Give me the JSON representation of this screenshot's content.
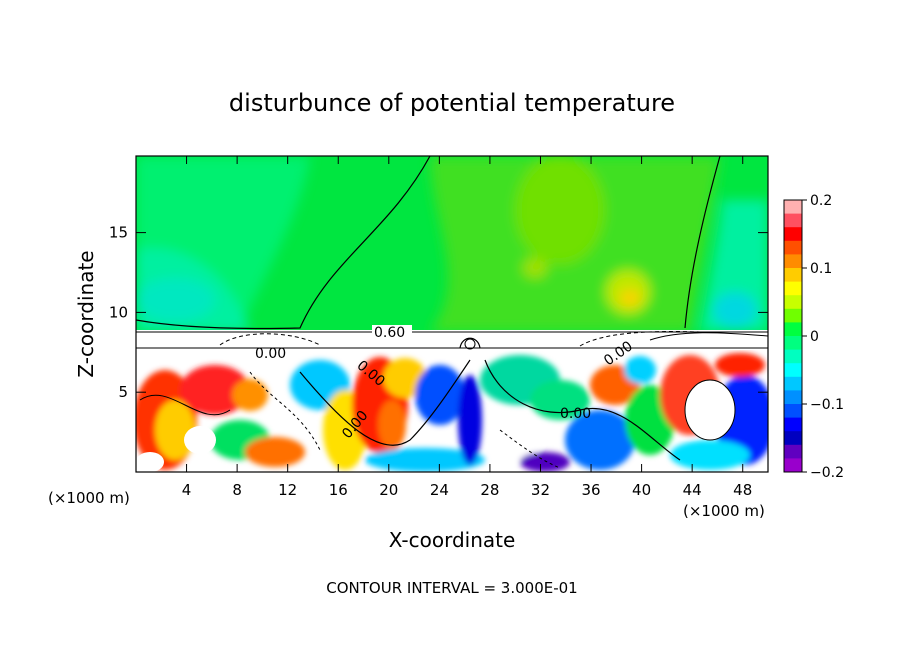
{
  "chart_data": {
    "type": "heatmap",
    "title": "disturbunce of potential temperature",
    "xlabel": "X-coordinate",
    "ylabel": "Z-coordinate",
    "x_unit_label": "(×1000 m)",
    "x_unit_label_right": "(×1000 m)",
    "x_ticks": [
      4,
      8,
      12,
      16,
      20,
      24,
      28,
      32,
      36,
      40,
      44,
      48
    ],
    "y_ticks": [
      5,
      10,
      15
    ],
    "xlim": [
      0,
      50
    ],
    "ylim": [
      0,
      19.8
    ],
    "contour_interval_text": "CONTOUR INTERVAL = 3.000E-01",
    "contour_labels": [
      "0.60",
      "0.00",
      "0.00",
      "0.00",
      "0.00",
      "0.00",
      "0.00"
    ],
    "colorbar": {
      "min": -0.2,
      "max": 0.2,
      "ticks": [
        0.2,
        0.1,
        0,
        -0.1,
        -0.2
      ],
      "tick_labels": [
        "0.2",
        "0.1",
        "0",
        "−0.1",
        "−0.2"
      ],
      "colors": [
        "#ffb0b0",
        "#ff5060",
        "#ff0000",
        "#ff5000",
        "#ff8c00",
        "#ffcc00",
        "#ffff00",
        "#c8ff00",
        "#70ff00",
        "#00ff40",
        "#00ff80",
        "#00ffc0",
        "#00ffff",
        "#00c8ff",
        "#0090ff",
        "#0050ff",
        "#0000ff",
        "#0000c0",
        "#6000c0",
        "#9900cc"
      ]
    },
    "regions": [
      {
        "x": [
          0,
          50
        ],
        "z": [
          9,
          19.8
        ],
        "value": 0.02
      },
      {
        "x": [
          0,
          50
        ],
        "z": [
          7.6,
          9
        ],
        "value": 0.6
      },
      {
        "x": [
          0,
          50
        ],
        "z": [
          0,
          7.6
        ],
        "value": 0.0
      }
    ]
  }
}
